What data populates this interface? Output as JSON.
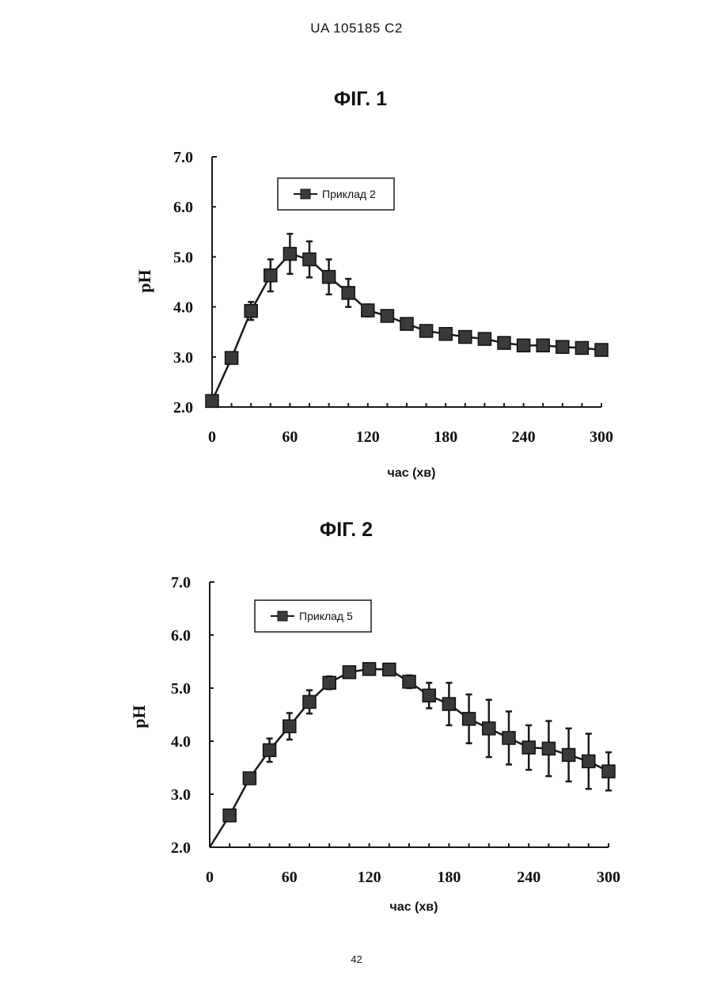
{
  "header": {
    "patent_id": "UA   105185   C2"
  },
  "page_number": "42",
  "chart_data": [
    {
      "type": "line",
      "title": "ФІГ. 1",
      "xlabel": "час (хв)",
      "ylabel": "pH",
      "xlim": [
        0,
        300
      ],
      "ylim": [
        2.0,
        7.0
      ],
      "x_ticks": [
        0,
        60,
        120,
        180,
        240,
        300
      ],
      "y_ticks": [
        2.0,
        3.0,
        4.0,
        5.0,
        6.0,
        7.0
      ],
      "x_tick_labels": [
        "0",
        "60",
        "120",
        "180",
        "240",
        "300"
      ],
      "y_tick_labels": [
        "2.0",
        "3.0",
        "4.0",
        "5.0",
        "6.0",
        "7.0"
      ],
      "grid": false,
      "legend_position": "top-left",
      "x": [
        0,
        15,
        30,
        45,
        60,
        75,
        90,
        105,
        120,
        135,
        150,
        165,
        180,
        195,
        210,
        225,
        240,
        255,
        270,
        285,
        300
      ],
      "series": [
        {
          "name": "Приклад 2",
          "marker": "square",
          "color": "#222222",
          "values": [
            2.12,
            2.98,
            3.92,
            4.63,
            5.06,
            4.95,
            4.6,
            4.28,
            3.93,
            3.82,
            3.66,
            3.52,
            3.46,
            3.4,
            3.36,
            3.28,
            3.23,
            3.23,
            3.2,
            3.18,
            3.14
          ],
          "error": [
            0,
            0,
            0.18,
            0.32,
            0.4,
            0.36,
            0.35,
            0.28,
            0.12,
            0,
            0,
            0,
            0,
            0,
            0,
            0,
            0,
            0,
            0,
            0,
            0
          ]
        }
      ]
    },
    {
      "type": "line",
      "title": "ФІГ. 2",
      "xlabel": "час (хв)",
      "ylabel": "pH",
      "xlim": [
        0,
        300
      ],
      "ylim": [
        2.0,
        7.0
      ],
      "x_ticks": [
        0,
        60,
        120,
        180,
        240,
        300
      ],
      "y_ticks": [
        2.0,
        3.0,
        4.0,
        5.0,
        6.0,
        7.0
      ],
      "x_tick_labels": [
        "0",
        "60",
        "120",
        "180",
        "240",
        "300"
      ],
      "y_tick_labels": [
        "2.0",
        "3.0",
        "4.0",
        "5.0",
        "6.0",
        "7.0"
      ],
      "grid": false,
      "legend_position": "top-left",
      "x": [
        0,
        15,
        30,
        45,
        60,
        75,
        90,
        105,
        120,
        135,
        150,
        165,
        180,
        195,
        210,
        225,
        240,
        255,
        270,
        285,
        300
      ],
      "series": [
        {
          "name": "Приклад 5",
          "marker": "square",
          "color": "#222222",
          "values": [
            2.0,
            2.6,
            3.3,
            3.83,
            4.28,
            4.74,
            5.1,
            5.3,
            5.36,
            5.35,
            5.12,
            4.86,
            4.7,
            4.42,
            4.24,
            4.06,
            3.88,
            3.86,
            3.74,
            3.62,
            3.43
          ],
          "error": [
            0,
            0,
            0.08,
            0.22,
            0.25,
            0.22,
            0.12,
            0.06,
            0.1,
            0.08,
            0.12,
            0.24,
            0.4,
            0.46,
            0.54,
            0.5,
            0.42,
            0.52,
            0.5,
            0.52,
            0.36
          ],
          "show_marker": [
            false,
            true,
            true,
            true,
            true,
            true,
            true,
            true,
            true,
            true,
            true,
            true,
            true,
            true,
            true,
            true,
            true,
            true,
            true,
            true,
            true
          ]
        }
      ]
    }
  ]
}
